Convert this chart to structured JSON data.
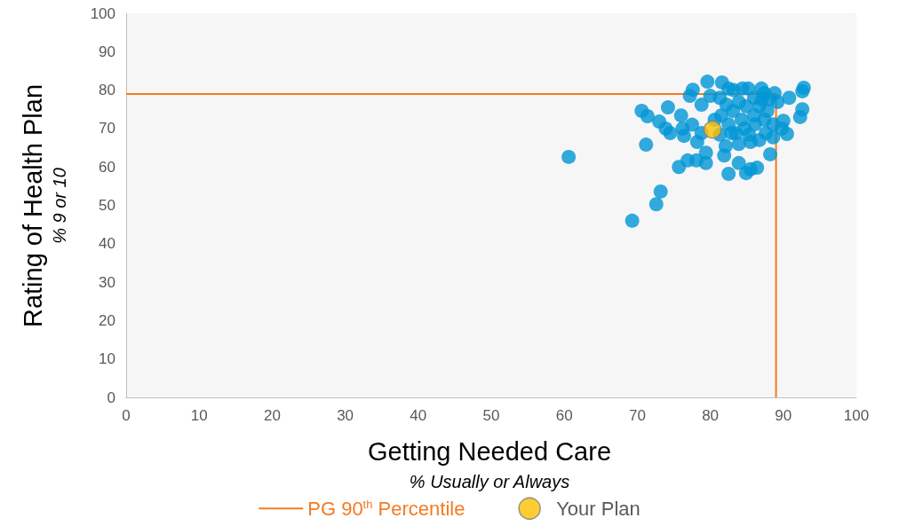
{
  "chart_data": {
    "type": "scatter",
    "xlabel": "Getting Needed Care",
    "ylabel": "Rating of Health Plan",
    "annotations": [
      "% Usually or Always",
      "% 9 or 10"
    ],
    "xlim": [
      0,
      100
    ],
    "xticks": [
      0,
      10,
      20,
      30,
      40,
      50,
      60,
      70,
      80,
      90,
      100
    ],
    "ylim": [
      0,
      100
    ],
    "yticks": [
      0,
      10,
      20,
      30,
      40,
      50,
      60,
      70,
      80,
      90,
      100
    ],
    "grid": false,
    "legend": "bottom",
    "marker": "circle",
    "series": [
      {
        "color": "#0096d6",
        "x": [
          60.6,
          69.3,
          72.6,
          73.2,
          71.2,
          70.6,
          71.4,
          74.2,
          75.7,
          76.9,
          78.1,
          79.4,
          79.4,
          82.5,
          83.9,
          84.9,
          85.5,
          86.4,
          88.2,
          90.5,
          90,
          92.3,
          92.6,
          92.6,
          92.8,
          90.8,
          88.8,
          87,
          79.6,
          81.6,
          77.6,
          77.2,
          76,
          76.2,
          76.4,
          73,
          73.9,
          74.5,
          78.2,
          77.5,
          78.8,
          81.3,
          83.2,
          84.4,
          86,
          87.4,
          81.5,
          83.1,
          84.9,
          86.7,
          87.8,
          88.6,
          87.6,
          86.7,
          85.5,
          83.9,
          82.1,
          81.9,
          82.9,
          84.7,
          86.1,
          82.5,
          80.6,
          80,
          78.8,
          86,
          84.3,
          87.4,
          89.2,
          87.1,
          88.6,
          89.8,
          83.9,
          82.2,
          80,
          82.5,
          85.2,
          88,
          83.5,
          85.3,
          81.3
        ],
        "values": [
          62.6,
          46,
          50.3,
          53.6,
          65.8,
          74.6,
          73.2,
          75.5,
          60,
          61.7,
          61.7,
          61,
          63.7,
          58.2,
          61,
          58.4,
          59.4,
          59.8,
          63.3,
          68.6,
          72,
          73,
          75,
          79.7,
          80.6,
          78,
          79.2,
          80.4,
          82.2,
          82,
          80.1,
          78.5,
          73.4,
          70,
          68.1,
          71.8,
          70,
          68.8,
          66.5,
          71,
          76.2,
          78,
          80,
          80.4,
          78,
          79.2,
          73.4,
          74.6,
          75.8,
          75.8,
          74.6,
          71.1,
          68.8,
          67,
          66.5,
          66,
          65.4,
          63,
          68.8,
          70,
          71.1,
          71.1,
          72.3,
          null,
          68.8,
          73.4,
          72.3,
          72.3,
          76.9,
          77.6,
          67.7,
          70,
          76.9,
          76.2,
          78.5,
          80.4,
          80.4,
          77.6,
          68.8,
          68.4,
          68.4
        ]
      },
      {
        "name": "PG 90$^{th}$ Percentile",
        "type": "line",
        "marker": "none",
        "color": "#f47b20",
        "x": [
          0,
          89,
          89
        ],
        "values": [
          79,
          79,
          0
        ]
      },
      {
        "name": "Your Plan",
        "color": "#ffc000",
        "x": [
          80.3
        ],
        "values": [
          69.7
        ]
      }
    ]
  }
}
